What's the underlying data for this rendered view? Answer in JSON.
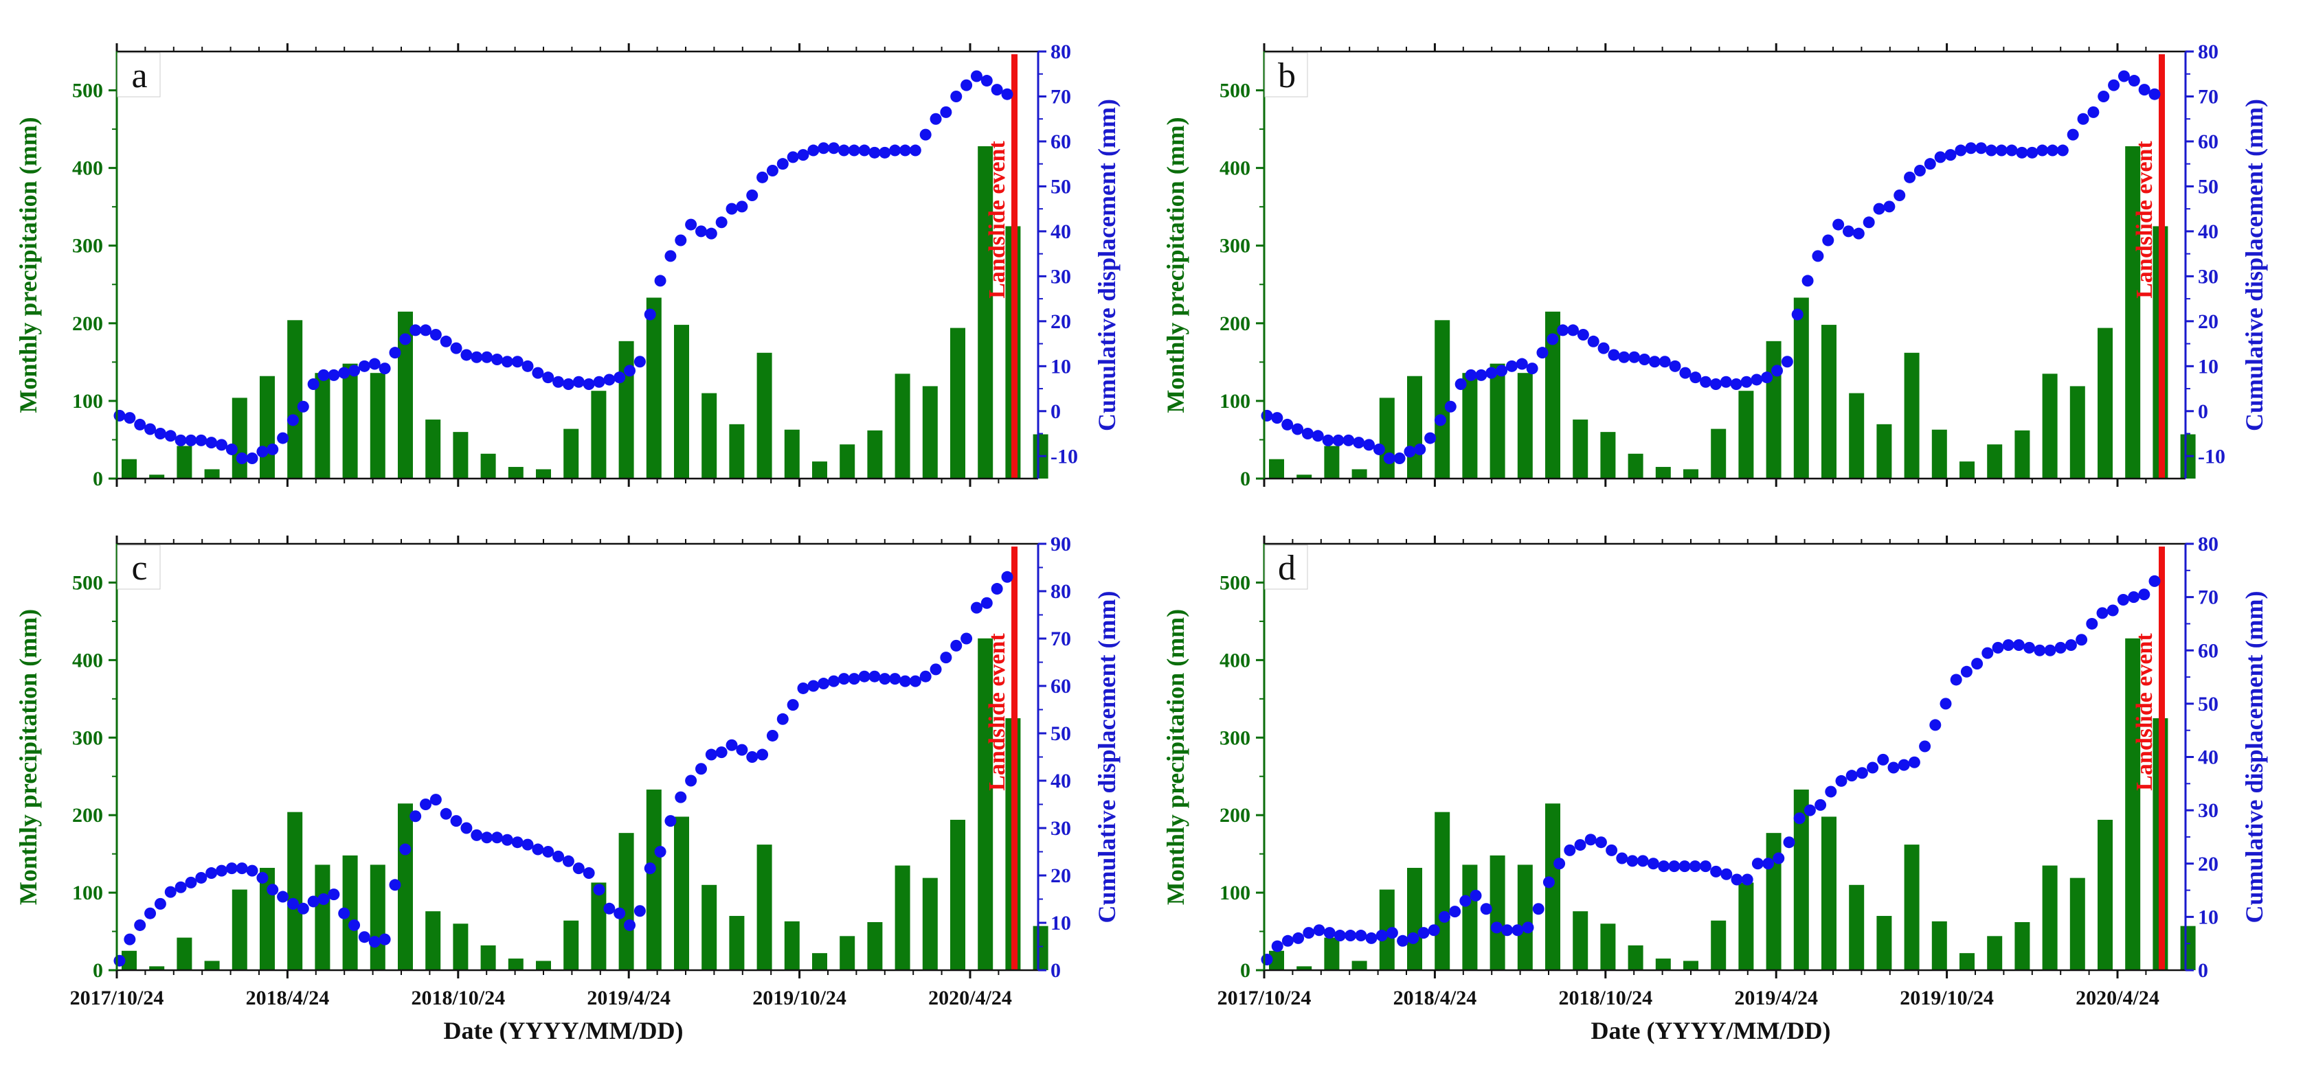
{
  "colors": {
    "bar": "#0b7a0b",
    "points": "#1010f0",
    "event_line": "#ee1111",
    "left_axis": "#0b6e0b",
    "right_axis": "#1a1acd",
    "frame": "#111111"
  },
  "chart_data": [
    {
      "panel": "a",
      "type": "bar+scatter",
      "xlabel": "",
      "ylabel_left": "Monthly precipitation (mm)",
      "ylabel_right": "Cumulative displacement (mm)",
      "ylim_left": [
        0,
        550
      ],
      "yticks_left": [
        0,
        100,
        200,
        300,
        400,
        500
      ],
      "ylim_right": [
        -15,
        80
      ],
      "yticks_right": [
        -10,
        0,
        10,
        20,
        30,
        40,
        50,
        60,
        70,
        80
      ],
      "event_label": "Landslide event",
      "bar_values": [
        25,
        5,
        42,
        12,
        104,
        132,
        204,
        136,
        148,
        136,
        215,
        76,
        60,
        32,
        15,
        12,
        64,
        113,
        177,
        233,
        198,
        110,
        70,
        162,
        63,
        22,
        44,
        62,
        135,
        119,
        194,
        428,
        325,
        57
      ],
      "displacement": [
        -1,
        -1.5,
        -3,
        -4,
        -5,
        -5.5,
        -6.5,
        -6.5,
        -6.5,
        -7,
        -7.5,
        -8.5,
        -10.5,
        -10.5,
        -9,
        -8.5,
        -6,
        -2,
        1,
        6,
        8,
        8,
        8.5,
        9,
        10,
        10.5,
        9.5,
        13,
        16,
        18,
        18,
        17,
        15.5,
        14,
        12.5,
        12,
        12,
        11.5,
        11,
        11,
        10,
        8.5,
        7.5,
        6.5,
        6,
        6.5,
        6,
        6.5,
        7,
        7.5,
        9,
        11,
        21.5,
        29,
        34.5,
        38,
        41.5,
        40,
        39.5,
        42,
        45,
        45.5,
        48,
        52,
        53.5,
        55,
        56.5,
        57,
        58,
        58.5,
        58.5,
        58,
        58,
        58,
        57.5,
        57.5,
        58,
        58,
        58,
        61.5,
        65,
        66.5,
        70,
        72.5,
        74.5,
        73.5,
        71.5,
        70.5
      ]
    },
    {
      "panel": "b",
      "type": "bar+scatter",
      "xlabel": "",
      "ylabel_left": "Monthly precipitation (mm)",
      "ylabel_right": "Cumulative displacement (mm)",
      "ylim_left": [
        0,
        550
      ],
      "yticks_left": [
        0,
        100,
        200,
        300,
        400,
        500
      ],
      "ylim_right": [
        -15,
        80
      ],
      "yticks_right": [
        -10,
        0,
        10,
        20,
        30,
        40,
        50,
        60,
        70,
        80
      ],
      "event_label": "Landslide event",
      "bar_values": [
        25,
        5,
        42,
        12,
        104,
        132,
        204,
        136,
        148,
        136,
        215,
        76,
        60,
        32,
        15,
        12,
        64,
        113,
        177,
        233,
        198,
        110,
        70,
        162,
        63,
        22,
        44,
        62,
        135,
        119,
        194,
        428,
        325,
        57
      ],
      "displacement": [
        -1,
        -1.5,
        -3,
        -4,
        -5,
        -5.5,
        -6.5,
        -6.5,
        -6.5,
        -7,
        -7.5,
        -8.5,
        -10.5,
        -10.5,
        -9,
        -8.5,
        -6,
        -2,
        1,
        6,
        8,
        8,
        8.5,
        9,
        10,
        10.5,
        9.5,
        13,
        16,
        18,
        18,
        17,
        15.5,
        14,
        12.5,
        12,
        12,
        11.5,
        11,
        11,
        10,
        8.5,
        7.5,
        6.5,
        6,
        6.5,
        6,
        6.5,
        7,
        7.5,
        9,
        11,
        21.5,
        29,
        34.5,
        38,
        41.5,
        40,
        39.5,
        42,
        45,
        45.5,
        48,
        52,
        53.5,
        55,
        56.5,
        57,
        58,
        58.5,
        58.5,
        58,
        58,
        58,
        57.5,
        57.5,
        58,
        58,
        58,
        61.5,
        65,
        66.5,
        70,
        72.5,
        74.5,
        73.5,
        71.5,
        70.5
      ]
    },
    {
      "panel": "c",
      "type": "bar+scatter",
      "xlabel": "Date (YYYY/MM/DD)",
      "ylabel_left": "Monthly precipitation (mm)",
      "ylabel_right": "Cumulative displacement (mm)",
      "ylim_left": [
        0,
        550
      ],
      "yticks_left": [
        0,
        100,
        200,
        300,
        400,
        500
      ],
      "ylim_right": [
        0,
        90
      ],
      "yticks_right": [
        0,
        10,
        20,
        30,
        40,
        50,
        60,
        70,
        80,
        90
      ],
      "event_label": "Landslide event",
      "x_ticks": [
        "2017/10/24",
        "2018/4/24",
        "2018/10/24",
        "2019/4/24",
        "2019/10/24",
        "2020/4/24"
      ],
      "bar_values": [
        25,
        5,
        42,
        12,
        104,
        132,
        204,
        136,
        148,
        136,
        215,
        76,
        60,
        32,
        15,
        12,
        64,
        113,
        177,
        233,
        198,
        110,
        70,
        162,
        63,
        22,
        44,
        62,
        135,
        119,
        194,
        428,
        325,
        57
      ],
      "displacement": [
        2,
        6.5,
        9.5,
        12,
        14,
        16.5,
        17.5,
        18.5,
        19.5,
        20.5,
        21,
        21.5,
        21.5,
        21,
        19.5,
        17,
        15.5,
        14,
        13,
        14.5,
        15,
        16,
        12,
        9.5,
        7,
        6,
        6.5,
        18,
        25.5,
        32.5,
        35,
        36,
        33,
        31.5,
        30,
        28.5,
        28,
        28,
        27.5,
        27,
        26.5,
        25.5,
        25,
        24,
        23,
        21.5,
        20.5,
        17,
        13,
        12,
        9.5,
        12.5,
        21.5,
        25,
        31.5,
        36.5,
        40,
        42.5,
        45.5,
        46,
        47.5,
        46.5,
        45,
        45.5,
        49.5,
        53,
        56,
        59.5,
        60,
        60.5,
        61,
        61.5,
        61.5,
        62,
        62,
        61.5,
        61.5,
        61,
        61,
        62,
        63.5,
        66,
        68.5,
        70,
        76.5,
        77.5,
        80.5,
        83
      ]
    },
    {
      "panel": "d",
      "type": "bar+scatter",
      "xlabel": "Date (YYYY/MM/DD)",
      "ylabel_left": "Monthly precipitation (mm)",
      "ylabel_right": "Cumulative displacement (mm)",
      "ylim_left": [
        0,
        550
      ],
      "yticks_left": [
        0,
        100,
        200,
        300,
        400,
        500
      ],
      "ylim_right": [
        0,
        80
      ],
      "yticks_right": [
        0,
        10,
        20,
        30,
        40,
        50,
        60,
        70,
        80
      ],
      "event_label": "Landslide event",
      "x_ticks": [
        "2017/10/24",
        "2018/4/24",
        "2018/10/24",
        "2019/4/24",
        "2019/10/24",
        "2020/4/24"
      ],
      "bar_values": [
        25,
        5,
        42,
        12,
        104,
        132,
        204,
        136,
        148,
        136,
        215,
        76,
        60,
        32,
        15,
        12,
        64,
        113,
        177,
        233,
        198,
        110,
        70,
        162,
        63,
        22,
        44,
        62,
        135,
        119,
        194,
        428,
        325,
        57
      ],
      "displacement": [
        2,
        4.5,
        5.5,
        6,
        7,
        7.5,
        7,
        6.5,
        6.5,
        6.5,
        6,
        6.5,
        7,
        5.5,
        6,
        7,
        7.5,
        10,
        11,
        13,
        14,
        11.5,
        8,
        7.5,
        7.5,
        8,
        11.5,
        16.5,
        20,
        22.5,
        23.5,
        24.5,
        24,
        22.5,
        21,
        20.5,
        20.5,
        20,
        19.5,
        19.5,
        19.5,
        19.5,
        19.5,
        18.5,
        18,
        17,
        17,
        20,
        20,
        21,
        24,
        28.5,
        30,
        31,
        33.5,
        35.5,
        36.5,
        37,
        38,
        39.5,
        38,
        38.5,
        39,
        42,
        46,
        50,
        54.5,
        56,
        57.5,
        59.5,
        60.5,
        61,
        61,
        60.5,
        60,
        60,
        60.5,
        61,
        62,
        65,
        67,
        67.5,
        69.5,
        70,
        70.5,
        73
      ]
    }
  ]
}
